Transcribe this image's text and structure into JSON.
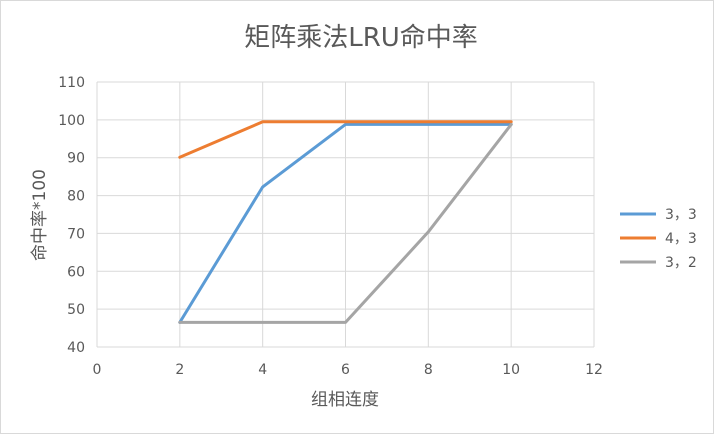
{
  "chart_data": {
    "type": "line",
    "title": "矩阵乘法LRU命中率",
    "xlabel": "组相连度",
    "ylabel": "命中率*100",
    "xlim": [
      0,
      12
    ],
    "ylim": [
      40,
      110
    ],
    "xticks": [
      0,
      2,
      4,
      6,
      8,
      10,
      12
    ],
    "yticks": [
      40,
      50,
      60,
      70,
      80,
      90,
      100,
      110
    ],
    "grid": true,
    "legend_position": "right",
    "series": [
      {
        "name": "3，3",
        "color": "#5b9bd5",
        "x": [
          2,
          4,
          6,
          8,
          10
        ],
        "y": [
          46.5,
          82.3,
          98.8,
          98.8,
          98.8
        ]
      },
      {
        "name": "4，3",
        "color": "#ed7d31",
        "x": [
          2,
          4,
          6,
          8,
          10
        ],
        "y": [
          90.1,
          99.5,
          99.5,
          99.5,
          99.5
        ]
      },
      {
        "name": "3，2",
        "color": "#a5a5a5",
        "x": [
          2,
          4,
          6,
          8,
          10
        ],
        "y": [
          46.5,
          46.5,
          46.5,
          70.4,
          98.8
        ]
      }
    ]
  }
}
